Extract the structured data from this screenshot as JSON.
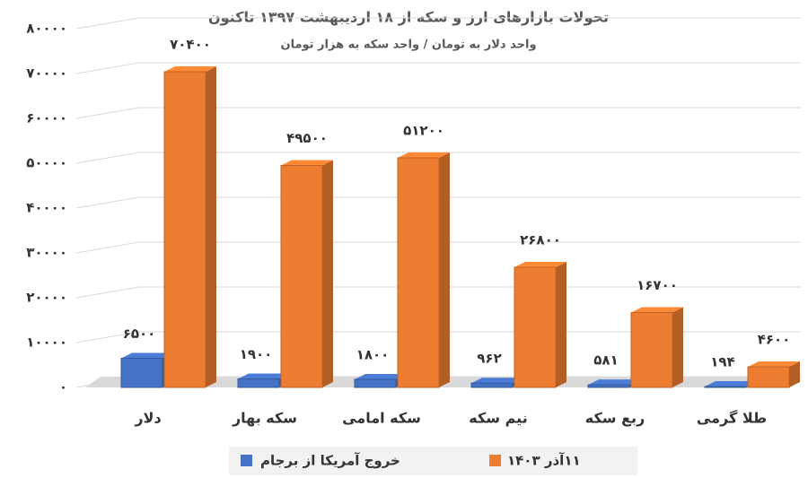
{
  "chart_data": {
    "type": "bar3d",
    "title": "تحولات بازارهای ارز و سکه از ۱۸ اردیبهشت ۱۳۹۷ تاکنون",
    "subtitle": "واحد دلار به تومان / واحد سکه به هزار تومان",
    "categories": [
      "دلار",
      "سکه بهار",
      "سکه امامی",
      "نیم سکه",
      "ربع سکه",
      "طلا گرمی"
    ],
    "series": [
      {
        "name": "خروج آمریکا از برجام",
        "color": "#4472c4",
        "values": [
          6500,
          1900,
          1800,
          962,
          581,
          194
        ],
        "value_labels": [
          "۶۵۰۰",
          "۱۹۰۰",
          "۱۸۰۰",
          "۹۶۲",
          "۵۸۱",
          "۱۹۴"
        ]
      },
      {
        "name": "۱۱آذر ۱۴۰۳",
        "color": "#ed7d31",
        "values": [
          70400,
          49500,
          51200,
          26800,
          16700,
          4600
        ],
        "value_labels": [
          "۷۰۴۰۰",
          "۴۹۵۰۰",
          "۵۱۲۰۰",
          "۲۶۸۰۰",
          "۱۶۷۰۰",
          "۴۶۰۰"
        ]
      }
    ],
    "ylim": [
      0,
      80000
    ],
    "yticks": [
      {
        "value": 0,
        "label": "۰"
      },
      {
        "value": 10000,
        "label": "۱۰۰۰۰"
      },
      {
        "value": 20000,
        "label": "۲۰۰۰۰"
      },
      {
        "value": 30000,
        "label": "۳۰۰۰۰"
      },
      {
        "value": 40000,
        "label": "۴۰۰۰۰"
      },
      {
        "value": 50000,
        "label": "۵۰۰۰۰"
      },
      {
        "value": 60000,
        "label": "۶۰۰۰۰"
      },
      {
        "value": 70000,
        "label": "۷۰۰۰۰"
      },
      {
        "value": 80000,
        "label": "۸۰۰۰۰"
      }
    ],
    "grid": true
  }
}
